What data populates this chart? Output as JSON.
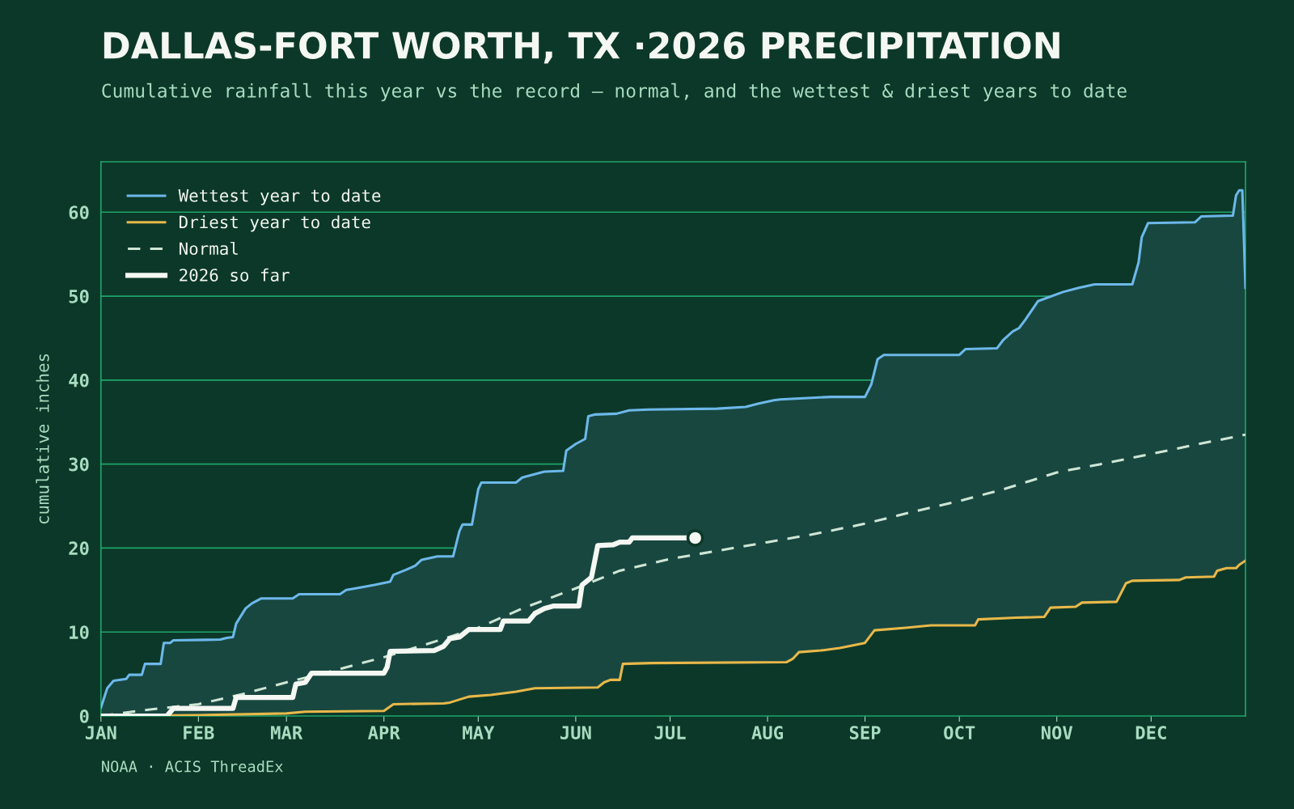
{
  "chart_data": {
    "type": "line",
    "title": "DALLAS-FORT WORTH, TX ·2026 PRECIPITATION",
    "subtitle": "Cumulative rainfall this year vs the record — normal, and the wettest & driest years to date",
    "ylabel": "cumulative inches",
    "annotations": [
      "NOAA · ACIS ThreadEx"
    ],
    "xlim": [
      "2026-01-01",
      "2026-12-31"
    ],
    "xticks": [
      {
        "value": "2026-01-01",
        "label": "JAN"
      },
      {
        "value": "2026-02-01",
        "label": "FEB"
      },
      {
        "value": "2026-03-01",
        "label": "MAR"
      },
      {
        "value": "2026-04-01",
        "label": "APR"
      },
      {
        "value": "2026-05-01",
        "label": "MAY"
      },
      {
        "value": "2026-06-01",
        "label": "JUN"
      },
      {
        "value": "2026-07-01",
        "label": "JUL"
      },
      {
        "value": "2026-08-01",
        "label": "AUG"
      },
      {
        "value": "2026-09-01",
        "label": "SEP"
      },
      {
        "value": "2026-10-01",
        "label": "OCT"
      },
      {
        "value": "2026-11-01",
        "label": "NOV"
      },
      {
        "value": "2026-12-01",
        "label": "DEC"
      }
    ],
    "ylim": [
      0,
      66
    ],
    "yticks": [
      0,
      10,
      20,
      30,
      40,
      50,
      60
    ],
    "grid": "y",
    "legend": "top left",
    "marker": "none",
    "series": [
      {
        "name": "Wettest year to date",
        "type": "area",
        "color": "#6db8ea",
        "line_style": "solid",
        "x": [
          "2026-01-01",
          "2026-01-03",
          "2026-01-05",
          "2026-01-09",
          "2026-01-10",
          "2026-01-14",
          "2026-01-15",
          "2026-01-20",
          "2026-01-21",
          "2026-01-23",
          "2026-01-24",
          "2026-02-08",
          "2026-02-10",
          "2026-02-12",
          "2026-02-13",
          "2026-02-16",
          "2026-02-18",
          "2026-02-21",
          "2026-03-03",
          "2026-03-05",
          "2026-03-18",
          "2026-03-20",
          "2026-03-23",
          "2026-03-29",
          "2026-04-03",
          "2026-04-04",
          "2026-04-08",
          "2026-04-11",
          "2026-04-13",
          "2026-04-18",
          "2026-04-23",
          "2026-04-25",
          "2026-04-26",
          "2026-04-29",
          "2026-05-01",
          "2026-05-02",
          "2026-05-13",
          "2026-05-15",
          "2026-05-22",
          "2026-05-28",
          "2026-05-29",
          "2026-06-01",
          "2026-06-04",
          "2026-06-05",
          "2026-06-07",
          "2026-06-14",
          "2026-06-18",
          "2026-06-24",
          "2026-07-16",
          "2026-07-25",
          "2026-07-29",
          "2026-08-03",
          "2026-08-05",
          "2026-08-21",
          "2026-09-01",
          "2026-09-03",
          "2026-09-05",
          "2026-09-07",
          "2026-10-01",
          "2026-10-03",
          "2026-10-13",
          "2026-10-15",
          "2026-10-18",
          "2026-10-20",
          "2026-10-22",
          "2026-10-26",
          "2026-11-03",
          "2026-11-08",
          "2026-11-13",
          "2026-11-25",
          "2026-11-27",
          "2026-11-28",
          "2026-11-30",
          "2026-12-15",
          "2026-12-17",
          "2026-12-27",
          "2026-12-28",
          "2026-12-29",
          "2026-12-30",
          "2026-12-31"
        ],
        "values": [
          1.0,
          3.3,
          4.2,
          4.4,
          4.9,
          4.9,
          6.2,
          6.2,
          8.7,
          8.7,
          9.0,
          9.1,
          9.3,
          9.4,
          11.0,
          12.8,
          13.4,
          14.0,
          14.0,
          14.5,
          14.5,
          15.0,
          15.2,
          15.6,
          16.0,
          16.8,
          17.4,
          17.9,
          18.6,
          19.0,
          19.0,
          22.0,
          22.8,
          22.8,
          27.0,
          27.8,
          27.8,
          28.4,
          29.1,
          29.2,
          31.6,
          32.4,
          33.0,
          35.7,
          35.9,
          36.0,
          36.4,
          36.5,
          36.6,
          36.8,
          37.2,
          37.6,
          37.7,
          38.0,
          38.0,
          39.5,
          42.5,
          43.0,
          43.0,
          43.7,
          43.8,
          44.8,
          45.8,
          46.2,
          47.2,
          49.4,
          50.5,
          51.0,
          51.4,
          51.4,
          54.0,
          57.0,
          58.7,
          58.8,
          59.5,
          59.6,
          62.0,
          62.6,
          62.6,
          51.0
        ]
      },
      {
        "name": "Driest year to date",
        "type": "line",
        "color": "#e8b84a",
        "line_style": "solid",
        "x": [
          "2026-01-01",
          "2026-02-01",
          "2026-03-01",
          "2026-03-07",
          "2026-04-01",
          "2026-04-04",
          "2026-04-20",
          "2026-04-22",
          "2026-04-28",
          "2026-05-05",
          "2026-05-13",
          "2026-05-19",
          "2026-06-08",
          "2026-06-10",
          "2026-06-12",
          "2026-06-15",
          "2026-06-16",
          "2026-06-25",
          "2026-08-07",
          "2026-08-09",
          "2026-08-11",
          "2026-08-18",
          "2026-08-24",
          "2026-09-01",
          "2026-09-04",
          "2026-09-14",
          "2026-09-22",
          "2026-10-06",
          "2026-10-07",
          "2026-10-19",
          "2026-10-28",
          "2026-10-30",
          "2026-11-07",
          "2026-11-09",
          "2026-11-20",
          "2026-11-23",
          "2026-11-25",
          "2026-12-10",
          "2026-12-12",
          "2026-12-21",
          "2026-12-22",
          "2026-12-25",
          "2026-12-28",
          "2026-12-29",
          "2026-12-31"
        ],
        "values": [
          0.0,
          0.1,
          0.3,
          0.5,
          0.6,
          1.4,
          1.5,
          1.6,
          2.3,
          2.5,
          2.9,
          3.3,
          3.4,
          4.0,
          4.3,
          4.3,
          6.2,
          6.3,
          6.4,
          6.8,
          7.6,
          7.8,
          8.1,
          8.7,
          10.2,
          10.5,
          10.8,
          10.8,
          11.5,
          11.7,
          11.8,
          12.9,
          13.0,
          13.5,
          13.6,
          15.8,
          16.1,
          16.2,
          16.5,
          16.6,
          17.3,
          17.6,
          17.6,
          18.0,
          18.5
        ]
      },
      {
        "name": "Normal",
        "color": "#cfe6d5",
        "line_style": "dashed",
        "x": [
          "2026-01-01",
          "2026-01-15",
          "2026-02-01",
          "2026-02-15",
          "2026-03-01",
          "2026-03-15",
          "2026-04-01",
          "2026-04-15",
          "2026-05-01",
          "2026-05-15",
          "2026-06-01",
          "2026-06-15",
          "2026-07-01",
          "2026-07-15",
          "2026-08-01",
          "2026-08-15",
          "2026-09-01",
          "2026-09-15",
          "2026-10-01",
          "2026-10-15",
          "2026-11-01",
          "2026-11-15",
          "2026-12-01",
          "2026-12-15",
          "2026-12-31"
        ],
        "values": [
          0.0,
          0.7,
          1.4,
          2.6,
          4.0,
          5.3,
          7.0,
          8.6,
          10.5,
          12.8,
          15.2,
          17.3,
          18.7,
          19.6,
          20.7,
          21.6,
          22.9,
          24.2,
          25.6,
          27.0,
          29.0,
          30.0,
          31.2,
          32.3,
          33.5
        ]
      },
      {
        "name": "2026 so far",
        "color": "#f4f7f2",
        "line_style": "solid",
        "x": [
          "2026-01-01",
          "2026-01-22",
          "2026-01-24",
          "2026-02-12",
          "2026-02-13",
          "2026-03-03",
          "2026-03-04",
          "2026-03-07",
          "2026-03-09",
          "2026-04-01",
          "2026-04-02",
          "2026-04-03",
          "2026-04-17",
          "2026-04-20",
          "2026-04-22",
          "2026-04-25",
          "2026-04-27",
          "2026-04-28",
          "2026-05-08",
          "2026-05-09",
          "2026-05-17",
          "2026-05-19",
          "2026-05-22",
          "2026-05-25",
          "2026-06-02",
          "2026-06-03",
          "2026-06-06",
          "2026-06-08",
          "2026-06-13",
          "2026-06-15",
          "2026-06-18",
          "2026-06-19",
          "2026-07-09"
        ],
        "values": [
          0.0,
          0.0,
          0.9,
          0.9,
          2.2,
          2.2,
          3.8,
          4.0,
          5.1,
          5.1,
          5.8,
          7.7,
          7.8,
          8.3,
          9.2,
          9.4,
          10.0,
          10.3,
          10.3,
          11.3,
          11.3,
          12.2,
          12.8,
          13.1,
          13.1,
          15.6,
          16.5,
          20.3,
          20.4,
          20.7,
          20.7,
          21.2,
          21.2
        ]
      },
      {
        "type": "scatter",
        "marker": "circle",
        "color": "#f4f7f2",
        "x": [
          "2026-07-09"
        ],
        "values": [
          21.2
        ]
      }
    ]
  }
}
